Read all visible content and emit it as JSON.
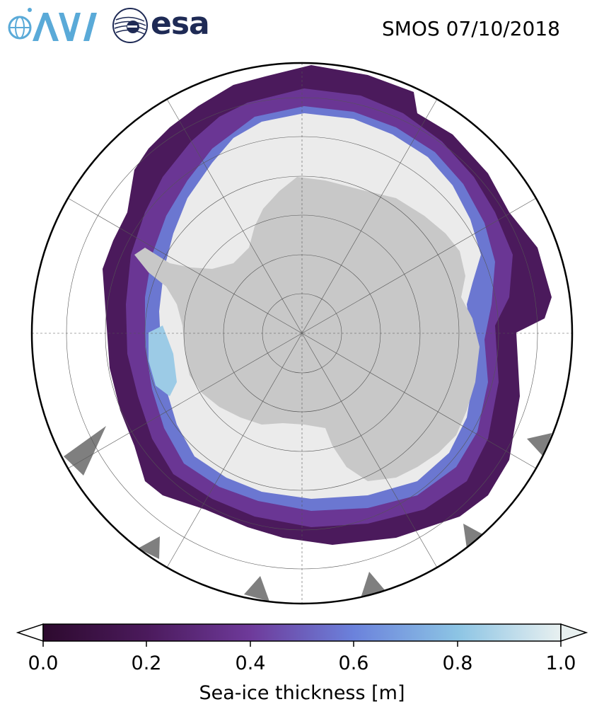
{
  "header": {
    "title": "SMOS 07/10/2018",
    "logos": [
      {
        "name": "AWI",
        "colors": [
          "#5aaad8"
        ]
      },
      {
        "name": "esa",
        "wordmark": "esa",
        "colors": [
          "#1e2a55"
        ]
      }
    ]
  },
  "map": {
    "projection": "south-polar-stereographic",
    "graticule": true,
    "colors": {
      "land": "#c8c8c8",
      "land_mask": "#7f7f7f",
      "ice_thick": "#ebebeb",
      "ocean": "#ffffff"
    }
  },
  "colorbar": {
    "label": "Sea-ice thickness [m]",
    "ticks": [
      "0.0",
      "0.2",
      "0.4",
      "0.6",
      "0.8",
      "1.0"
    ],
    "range": [
      0.0,
      1.0
    ],
    "extend": "both",
    "colors": [
      "#2d0a2e",
      "#4b1a5c",
      "#6e3a9a",
      "#6b82dc",
      "#8cc4e4",
      "#e8f0f0"
    ]
  }
}
